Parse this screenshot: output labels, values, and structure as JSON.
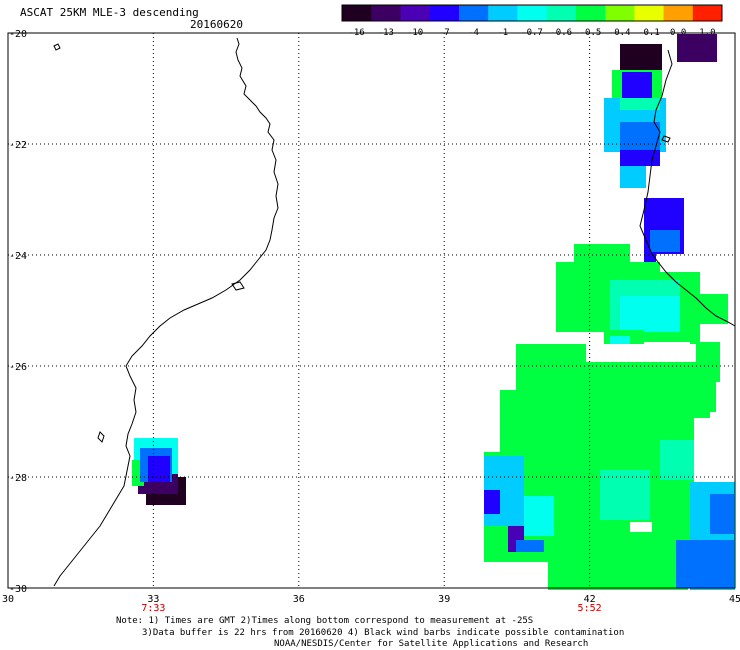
{
  "title": "ASCAT 25KM MLE-3 descending",
  "date": "20160620",
  "colorbar": {
    "labels": [
      "-16",
      "-13",
      "-10",
      "-7",
      "-4",
      "-1",
      "-0.7",
      "-0.6",
      "-0.5",
      "-0.4",
      "-0.1",
      "0.0",
      "1.0"
    ],
    "colors": [
      "#200020",
      "#3b0062",
      "#4a00b5",
      "#2000ff",
      "#0070ff",
      "#00ccff",
      "#00ffee",
      "#00ffb0",
      "#00ff40",
      "#80ff00",
      "#e8ff00",
      "#ffa000",
      "#ff2000"
    ]
  },
  "map": {
    "lon_ticks": [
      30,
      33,
      36,
      39,
      42,
      45
    ],
    "lat_ticks": [
      -20,
      -22,
      -24,
      -26,
      -28,
      -30
    ],
    "lat_tick_labels": [
      "-20",
      "-22",
      "-24",
      "-26",
      "-28",
      "-30"
    ],
    "lon_tick_labels": [
      "30",
      "33",
      "36",
      "39",
      "42",
      "45"
    ],
    "time_labels": [
      {
        "lon": 33,
        "text": "7:33"
      },
      {
        "lon": 42,
        "text": "5:52"
      }
    ],
    "time_color": "#c00000",
    "grid_style": "dotted",
    "coastline_color": "#000000"
  },
  "notes": [
    "Note: 1) Times are GMT 2)Times along bottom correspond to measurement at -25S",
    "3)Data buffer is 22 hrs from 20160620 4) Black wind barbs indicate possible contamination",
    "NOAA/NESDIS/Center for Satellite Applications and Research"
  ]
}
